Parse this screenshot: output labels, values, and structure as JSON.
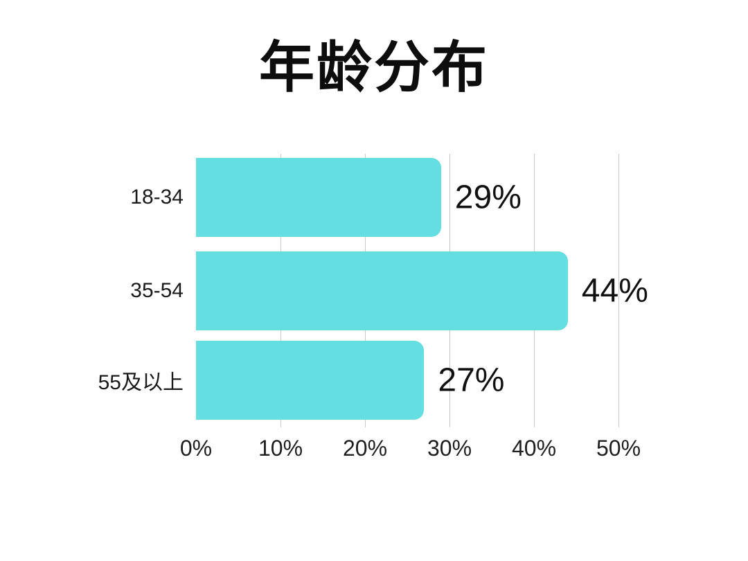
{
  "chart_data": {
    "type": "bar",
    "orientation": "horizontal",
    "title": "年龄分布",
    "categories": [
      "18-34",
      "35-54",
      "55及以上"
    ],
    "values": [
      29,
      44,
      27
    ],
    "value_labels": [
      "29%",
      "44%",
      "27%"
    ],
    "x_ticks": [
      "0%",
      "10%",
      "20%",
      "30%",
      "40%",
      "50%"
    ],
    "xlabel": "",
    "ylabel": "",
    "xlim": [
      0,
      50
    ],
    "grid": "vertical gridlines at 10%,20%,30%,40%,50%",
    "legend": "none",
    "bar_color": "#65dee1",
    "gridline_color": "#c9c9c9",
    "text_color": "#111111",
    "background_color": "#ffffff"
  }
}
